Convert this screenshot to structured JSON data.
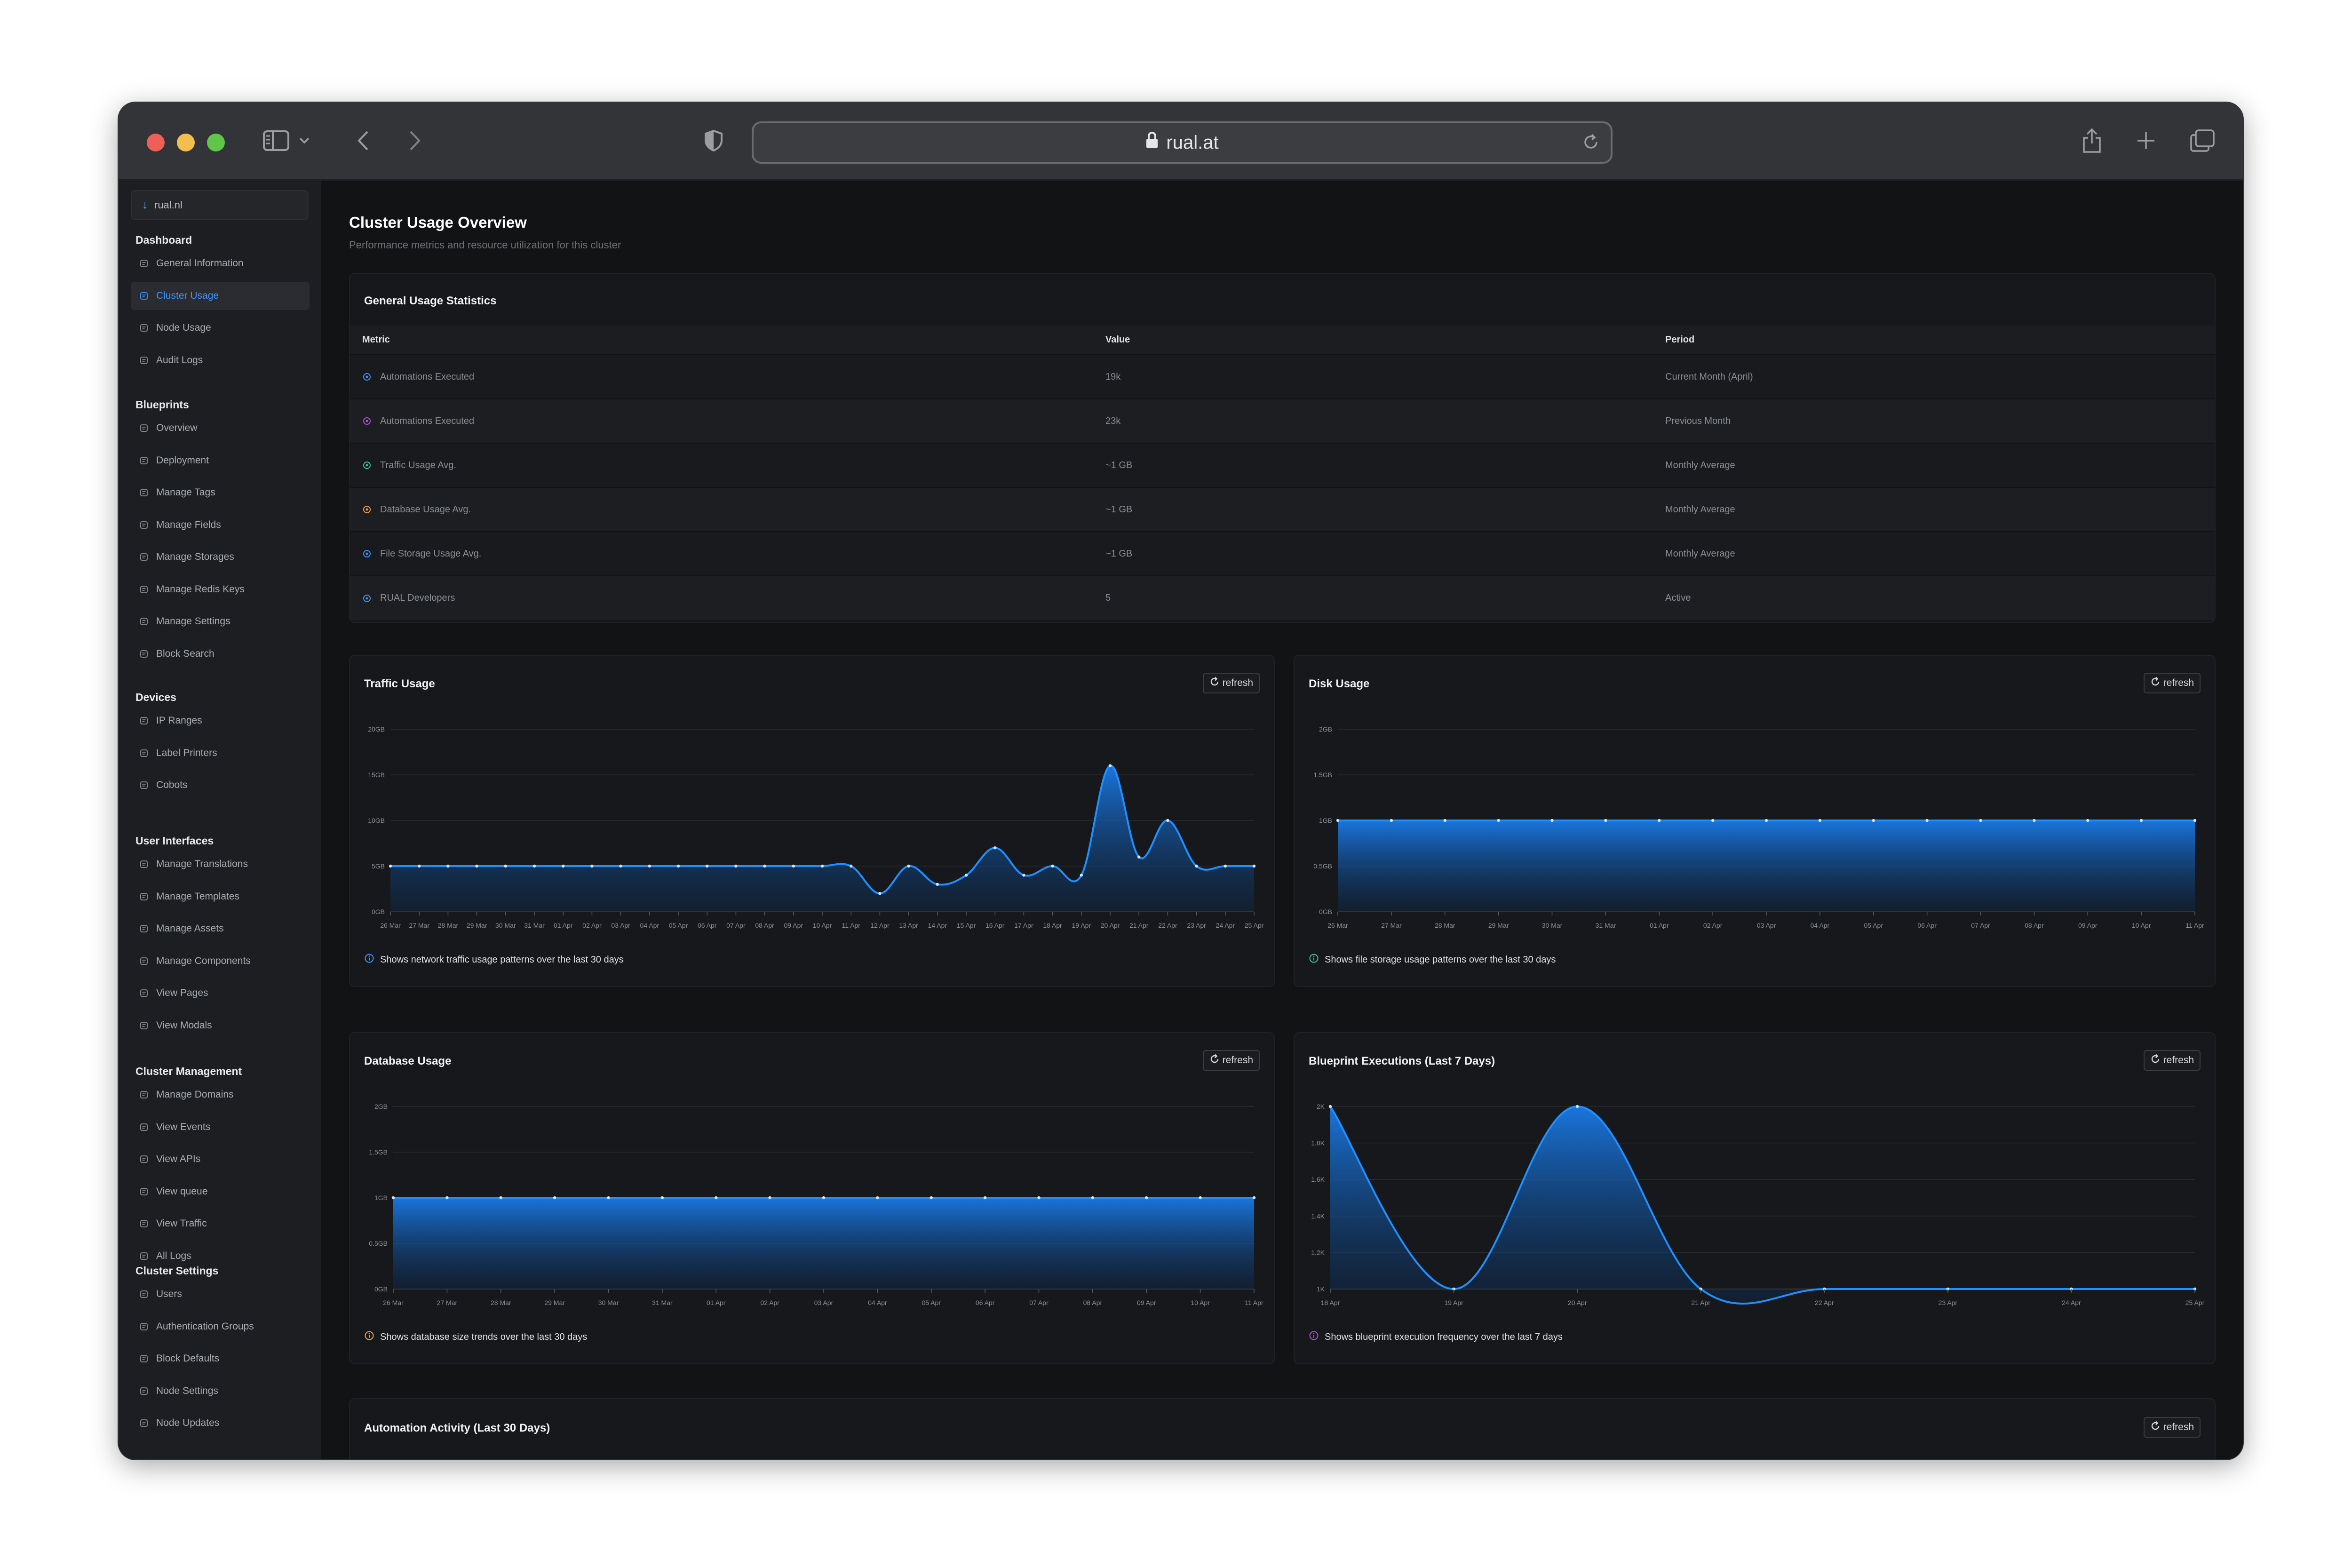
{
  "browser": {
    "url": "rual.at",
    "icons": [
      "sidebar-toggle-icon",
      "chevron-down-icon",
      "back-icon",
      "forward-icon",
      "shield-icon",
      "lock-icon",
      "reload-icon",
      "share-icon",
      "new-tab-icon",
      "tabs-overview-icon"
    ]
  },
  "sidebar": {
    "site_selector": "rual.nl",
    "sections": [
      {
        "title": "Dashboard",
        "items": [
          {
            "label": "General Information",
            "icon": "info-icon"
          },
          {
            "label": "Cluster Usage",
            "icon": "chart-icon",
            "active": true
          },
          {
            "label": "Node Usage",
            "icon": "bar-chart-icon"
          },
          {
            "label": "Audit Logs",
            "icon": "folder-icon"
          }
        ]
      },
      {
        "title": "Blueprints",
        "items": [
          {
            "label": "Overview",
            "icon": "list-icon"
          },
          {
            "label": "Deployment",
            "icon": "rocket-icon"
          },
          {
            "label": "Manage Tags",
            "icon": "tag-icon"
          },
          {
            "label": "Manage Fields",
            "icon": "edit-icon"
          },
          {
            "label": "Manage Storages",
            "icon": "database-icon"
          },
          {
            "label": "Manage Redis Keys",
            "icon": "cloud-icon"
          },
          {
            "label": "Manage Settings",
            "icon": "gear-icon"
          },
          {
            "label": "Block Search",
            "icon": "cube-icon"
          }
        ]
      },
      {
        "title": "Devices",
        "items": [
          {
            "label": "IP Ranges",
            "icon": "network-icon"
          },
          {
            "label": "Label Printers",
            "icon": "printer-icon"
          },
          {
            "label": "Cobots",
            "icon": "robot-icon"
          }
        ]
      },
      {
        "title": "User Interfaces",
        "items": [
          {
            "label": "Manage Translations",
            "icon": "globe-icon"
          },
          {
            "label": "Manage Templates",
            "icon": "template-icon"
          },
          {
            "label": "Manage Assets",
            "icon": "image-icon"
          },
          {
            "label": "Manage Components",
            "icon": "component-icon"
          },
          {
            "label": "View Pages",
            "icon": "page-icon"
          },
          {
            "label": "View Modals",
            "icon": "modal-icon"
          }
        ]
      },
      {
        "title": "Cluster Management",
        "items": [
          {
            "label": "Manage Domains",
            "icon": "domain-icon"
          },
          {
            "label": "View Events",
            "icon": "events-icon"
          },
          {
            "label": "View APIs",
            "icon": "api-icon"
          },
          {
            "label": "View queue",
            "icon": "hourglass-icon"
          },
          {
            "label": "View Traffic",
            "icon": "traffic-icon"
          },
          {
            "label": "All Logs",
            "icon": "link-icon"
          }
        ]
      },
      {
        "title": "Cluster Settings",
        "items": [
          {
            "label": "Users",
            "icon": "user-icon"
          },
          {
            "label": "Authentication Groups",
            "icon": "lock-icon"
          },
          {
            "label": "Block Defaults",
            "icon": "lines-icon"
          },
          {
            "label": "Node Settings",
            "icon": "server-icon"
          },
          {
            "label": "Node Updates",
            "icon": "cloud-update-icon"
          }
        ]
      }
    ]
  },
  "page": {
    "title": "Cluster Usage Overview",
    "subtitle": "Performance metrics and resource utilization for this cluster"
  },
  "stats": {
    "title": "General Usage Statistics",
    "headers": [
      "Metric",
      "Value",
      "Period"
    ],
    "rows": [
      {
        "metric": "Automations Executed",
        "value": "19k",
        "period": "Current Month (April)",
        "icon": "bolt-icon",
        "color": "#3b95ff"
      },
      {
        "metric": "Automations Executed",
        "value": "23k",
        "period": "Previous Month",
        "icon": "history-icon",
        "color": "#b04fd6"
      },
      {
        "metric": "Traffic Usage Avg.",
        "value": "~1 GB",
        "period": "Monthly Average",
        "icon": "swap-icon",
        "color": "#3bc49a"
      },
      {
        "metric": "Database Usage Avg.",
        "value": "~1 GB",
        "period": "Monthly Average",
        "icon": "database-icon",
        "color": "#f0a13a"
      },
      {
        "metric": "File Storage Usage Avg.",
        "value": "~1 GB",
        "period": "Monthly Average",
        "icon": "storage-icon",
        "color": "#3b95ff"
      },
      {
        "metric": "RUAL Developers",
        "value": "5",
        "period": "Active",
        "icon": "users-icon",
        "color": "#3b95ff"
      }
    ]
  },
  "refresh_label": "refresh",
  "charts": {
    "traffic": {
      "title": "Traffic Usage",
      "note": "Shows network traffic usage patterns over the last 30 days",
      "note_color": "#3b95ff",
      "chart_data": {
        "type": "area",
        "x": [
          "26 Mar",
          "27 Mar",
          "28 Mar",
          "29 Mar",
          "30 Mar",
          "31 Mar",
          "01 Apr",
          "02 Apr",
          "03 Apr",
          "04 Apr",
          "05 Apr",
          "06 Apr",
          "07 Apr",
          "08 Apr",
          "09 Apr",
          "10 Apr",
          "11 Apr",
          "12 Apr",
          "13 Apr",
          "14 Apr",
          "15 Apr",
          "16 Apr",
          "17 Apr",
          "18 Apr",
          "19 Apr",
          "20 Apr",
          "21 Apr",
          "22 Apr",
          "23 Apr",
          "24 Apr",
          "25 Apr"
        ],
        "values": [
          5,
          5,
          5,
          5,
          5,
          5,
          5,
          5,
          5,
          5,
          5,
          5,
          5,
          5,
          5,
          5,
          5,
          2,
          5,
          3,
          4,
          7,
          4,
          5,
          4,
          16,
          6,
          10,
          5,
          5,
          5
        ],
        "y_ticks": [
          "0GB",
          "5GB",
          "10GB",
          "15GB",
          "20GB"
        ],
        "ylim": [
          0,
          20
        ]
      }
    },
    "disk": {
      "title": "Disk Usage",
      "note": "Shows file storage usage patterns over the last 30 days",
      "note_color": "#3bc49a",
      "chart_data": {
        "type": "area",
        "x": [
          "26 Mar",
          "27 Mar",
          "28 Mar",
          "29 Mar",
          "30 Mar",
          "31 Mar",
          "01 Apr",
          "02 Apr",
          "03 Apr",
          "04 Apr",
          "05 Apr",
          "06 Apr",
          "07 Apr",
          "08 Apr",
          "09 Apr",
          "10 Apr",
          "11 Apr"
        ],
        "values": [
          1,
          1,
          1,
          1,
          1,
          1,
          1,
          1,
          1,
          1,
          1,
          1,
          1,
          1,
          1,
          1,
          1
        ],
        "y_ticks": [
          "0GB",
          "0.5GB",
          "1GB",
          "1.5GB",
          "2GB"
        ],
        "ylim": [
          0,
          2
        ]
      }
    },
    "database": {
      "title": "Database Usage",
      "note": "Shows database size trends over the last 30 days",
      "note_color": "#f0a13a",
      "chart_data": {
        "type": "area",
        "x": [
          "26 Mar",
          "27 Mar",
          "28 Mar",
          "29 Mar",
          "30 Mar",
          "31 Mar",
          "01 Apr",
          "02 Apr",
          "03 Apr",
          "04 Apr",
          "05 Apr",
          "06 Apr",
          "07 Apr",
          "08 Apr",
          "09 Apr",
          "10 Apr",
          "11 Apr"
        ],
        "values": [
          1,
          1,
          1,
          1,
          1,
          1,
          1,
          1,
          1,
          1,
          1,
          1,
          1,
          1,
          1,
          1,
          1
        ],
        "y_ticks": [
          "0GB",
          "0.5GB",
          "1GB",
          "1.5GB",
          "2GB"
        ],
        "ylim": [
          0,
          2
        ]
      }
    },
    "blueprint": {
      "title": "Blueprint Executions (Last 7 Days)",
      "note": "Shows blueprint execution frequency over the last 7 days",
      "note_color": "#b04fd6",
      "chart_data": {
        "type": "area",
        "x": [
          "18 Apr",
          "19 Apr",
          "20 Apr",
          "21 Apr",
          "22 Apr",
          "23 Apr",
          "24 Apr",
          "25 Apr"
        ],
        "values": [
          2000,
          1000,
          2000,
          1000,
          1000,
          1000,
          1000,
          1000
        ],
        "y_ticks": [
          "1K",
          "1.2K",
          "1.4K",
          "1.6K",
          "1.8K",
          "2K"
        ],
        "ylim": [
          1000,
          2000
        ]
      }
    }
  },
  "automation": {
    "title": "Automation Activity (Last 30 Days)"
  }
}
